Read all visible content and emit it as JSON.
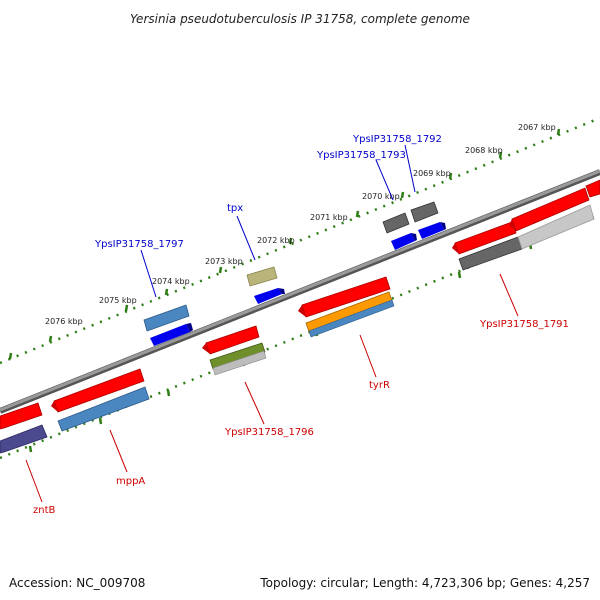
{
  "header": {
    "title": "Yersinia pseudotuberculosis IP 31758, complete genome"
  },
  "footer": {
    "accession": "Accession: NC_009708",
    "summary": "Topology: circular; Length: 4,723,306 bp; Genes: 4,257"
  },
  "scale_labels": [
    "2067 kbp",
    "2068 kbp",
    "2069 kbp",
    "2070 kbp",
    "2071 kbp",
    "2072 kbp",
    "2073 kbp",
    "2074 kbp",
    "2075 kbp",
    "2076 kbp"
  ],
  "gene_labels": {
    "blue": [
      "YpsIP31758_1792",
      "YpsIP31758_1793",
      "tpx",
      "YpsIP31758_1797"
    ],
    "red": [
      "YpsIP31758_1791",
      "tyrR",
      "YpsIP31758_1796",
      "mppA",
      "zntB"
    ]
  },
  "colors": {
    "backbone": "#808080",
    "tick": "#2e7d14",
    "forward_cds": "#ff0000",
    "forward_gene": "#0000ee",
    "label_red": "#cc0000",
    "label_blue": "#0000cc",
    "steelblue": "#4a86c0",
    "grey": "#666666",
    "khaki": "#b8b47a",
    "olive": "#6f8f2a",
    "orange": "#ff9900",
    "slate": "#4c4a8e",
    "lightgrey": "#bdbdbd"
  }
}
